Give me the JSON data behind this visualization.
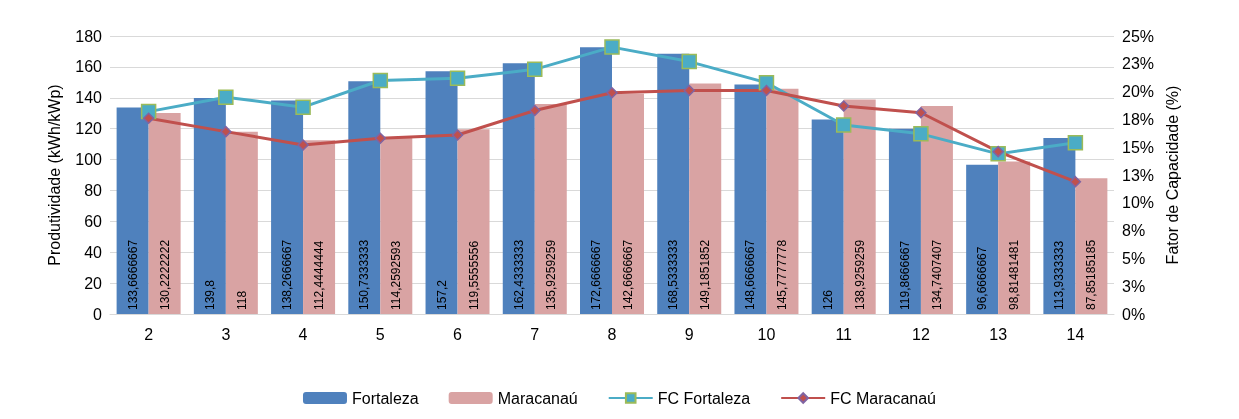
{
  "chart_data": {
    "type": "bar",
    "xlabel": null,
    "ylabel": "Produtividade (kWh/kWp)",
    "y2label": "Fator de Capacidade (%)",
    "categories": [
      "2",
      "3",
      "4",
      "5",
      "6",
      "7",
      "8",
      "9",
      "10",
      "11",
      "12",
      "13",
      "14"
    ],
    "ylim": [
      0,
      180
    ],
    "yticks": [
      0,
      20,
      40,
      60,
      80,
      100,
      120,
      140,
      160,
      180
    ],
    "y2lim": [
      0,
      25
    ],
    "y2ticks": [
      {
        "value": 0,
        "label": "0%"
      },
      {
        "value": 2.5,
        "label": "3%"
      },
      {
        "value": 5,
        "label": "5%"
      },
      {
        "value": 7.5,
        "label": "8%"
      },
      {
        "value": 10,
        "label": "10%"
      },
      {
        "value": 12.5,
        "label": "13%"
      },
      {
        "value": 15,
        "label": "15%"
      },
      {
        "value": 17.5,
        "label": "18%"
      },
      {
        "value": 20,
        "label": "20%"
      },
      {
        "value": 22.5,
        "label": "23%"
      },
      {
        "value": 25,
        "label": "25%"
      }
    ],
    "grid": "y",
    "legend": "bottom",
    "series": [
      {
        "name": "Fortaleza",
        "color": "#4f81bd",
        "values": [
          133.6666667,
          139.8,
          138.2666667,
          150.7333333,
          157.2,
          162.4333333,
          172.6666667,
          168.5333333,
          148.6666667,
          126,
          119.8666667,
          96.6666667,
          113.9333333
        ],
        "value_labels": [
          "133,6666667",
          "139,8",
          "138,2666667",
          "150,7333333",
          "157,2",
          "162,4333333",
          "172,6666667",
          "168,5333333",
          "148,6666667",
          "126",
          "119,8666667",
          "96,6666667",
          "113,9333333"
        ]
      },
      {
        "name": "Maracanaú",
        "color": "#d9a3a3",
        "values": [
          130.2222222,
          118,
          112.4444444,
          114.2592593,
          119.5555556,
          135.9259259,
          142.6666667,
          149.1851852,
          145.7777778,
          138.9259259,
          134.7407407,
          98.81481481,
          87.85185185
        ],
        "value_labels": [
          "130,2222222",
          "118",
          "112,4444444",
          "114,2592593",
          "119,5555556",
          "135,9259259",
          "142,6666667",
          "149,1851852",
          "145,7777778",
          "138,9259259",
          "134,7407407",
          "98,81481481",
          "87,85185185"
        ]
      },
      {
        "name": "FC Fortaleza",
        "type": "line",
        "axis": "y2",
        "color": "#4bacc6",
        "marker": "square",
        "values": [
          18.2,
          19.5,
          18.6,
          21.0,
          21.2,
          22.0,
          24.0,
          22.7,
          20.8,
          17.0,
          16.2,
          14.4,
          15.4
        ]
      },
      {
        "name": "FC Maracanaú",
        "type": "line",
        "axis": "y2",
        "color": "#c0504d",
        "marker": "diamond",
        "values": [
          17.6,
          16.4,
          15.2,
          15.8,
          16.1,
          18.3,
          19.9,
          20.1,
          20.1,
          18.7,
          18.1,
          14.6,
          11.9
        ]
      }
    ]
  }
}
